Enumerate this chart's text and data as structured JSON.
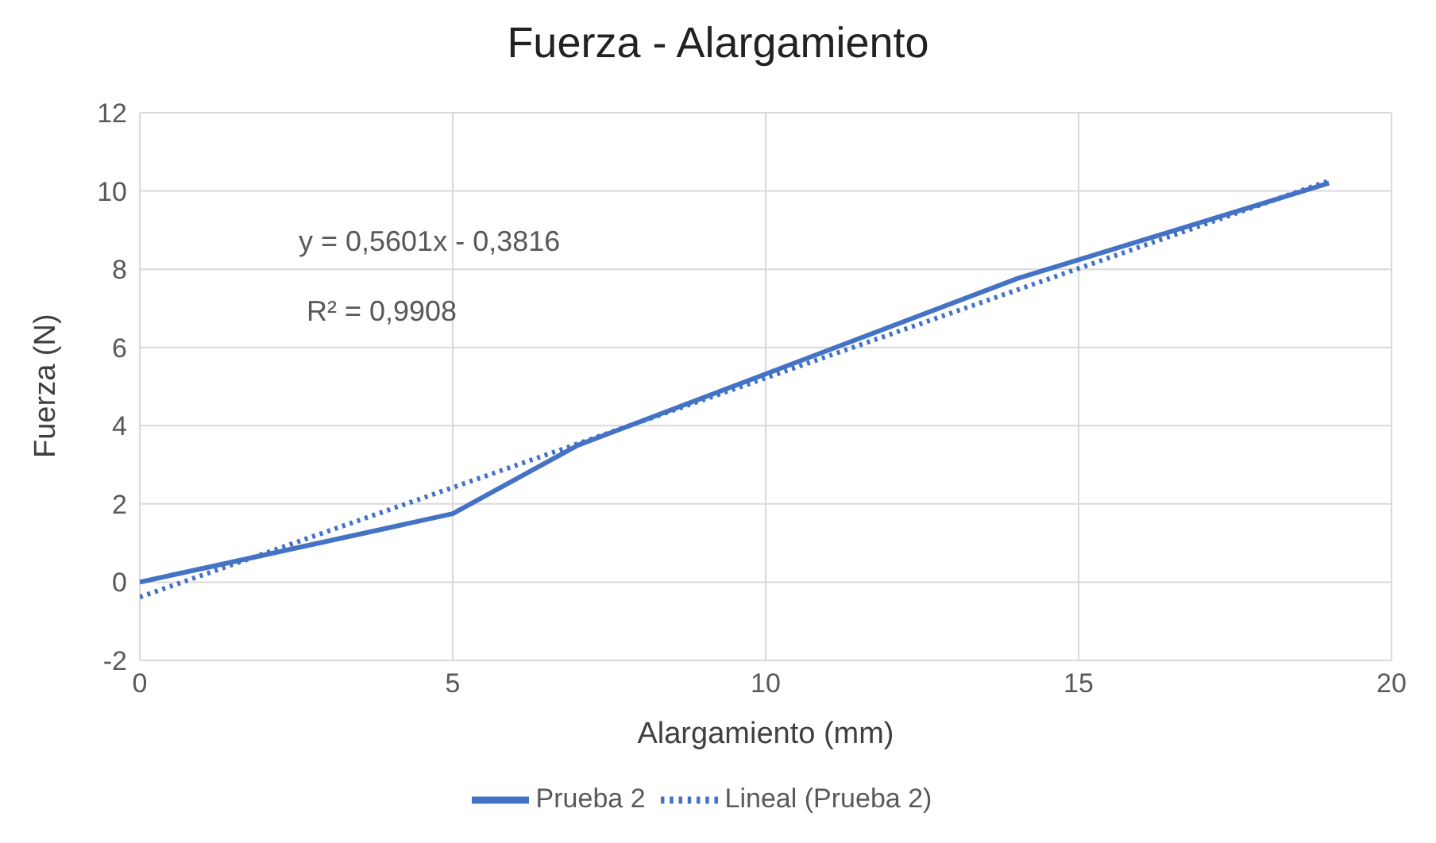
{
  "chart_data": {
    "type": "line",
    "title": "Fuerza - Alargamiento",
    "xlabel": "Alargamiento (mm)",
    "ylabel": "Fuerza (N)",
    "annotations": [
      "y = 0,5601x - 0,3816",
      "R² = 0,9908"
    ],
    "xlim": [
      0,
      20
    ],
    "xticks": [
      0,
      5,
      10,
      15,
      20
    ],
    "ylim": [
      -2,
      12
    ],
    "yticks": [
      -2,
      0,
      2,
      4,
      6,
      8,
      10,
      12
    ],
    "grid": true,
    "legend": "bottom",
    "series": [
      {
        "name": "Prueba 2",
        "color": "#4472c4",
        "x": [
          0,
          5,
          7,
          14,
          19
        ],
        "values": [
          0,
          1.75,
          3.5,
          7.75,
          10.2
        ],
        "line_style": "solid"
      },
      {
        "name": "Lineal (Prueba 2)",
        "color": "#4472c4",
        "x": [
          0,
          19
        ],
        "values": [
          -0.38,
          10.26
        ],
        "line_style": "dotted"
      }
    ]
  }
}
